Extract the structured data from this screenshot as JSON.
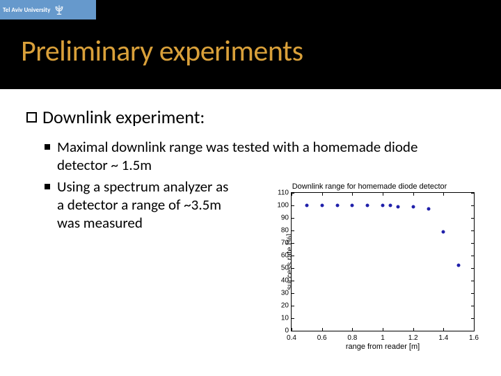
{
  "logo": {
    "text": "Tel Aviv University"
  },
  "title": {
    "text": "Preliminary experiments",
    "color": "#d9a03a"
  },
  "subhead": "Downlink experiment:",
  "bullets": [
    "Maximal downlink range was tested with a homemade diode detector ~ 1.5m",
    "Using a spectrum analyzer as a detector a range of ~3.5m\n was measured"
  ],
  "chart": {
    "type": "scatter",
    "title": "Downlink range for homemade diode detector",
    "xlabel": "range from reader [m]",
    "ylabel": "success rate [%]",
    "xlim": [
      0.4,
      1.6
    ],
    "ylim": [
      0,
      110
    ],
    "xticks": [
      0.4,
      0.6,
      0.8,
      1.0,
      1.2,
      1.4,
      1.6
    ],
    "yticks": [
      0,
      10,
      20,
      30,
      40,
      50,
      60,
      70,
      80,
      90,
      100,
      110
    ],
    "marker_color": "#2020aa",
    "background": "#ffffff",
    "axis_color": "#000000",
    "points": [
      {
        "x": 0.5,
        "y": 100
      },
      {
        "x": 0.6,
        "y": 100
      },
      {
        "x": 0.7,
        "y": 100
      },
      {
        "x": 0.8,
        "y": 100
      },
      {
        "x": 0.9,
        "y": 100
      },
      {
        "x": 1.0,
        "y": 100
      },
      {
        "x": 1.05,
        "y": 100
      },
      {
        "x": 1.1,
        "y": 99
      },
      {
        "x": 1.2,
        "y": 99
      },
      {
        "x": 1.3,
        "y": 97
      },
      {
        "x": 1.4,
        "y": 79
      },
      {
        "x": 1.5,
        "y": 52
      }
    ]
  }
}
